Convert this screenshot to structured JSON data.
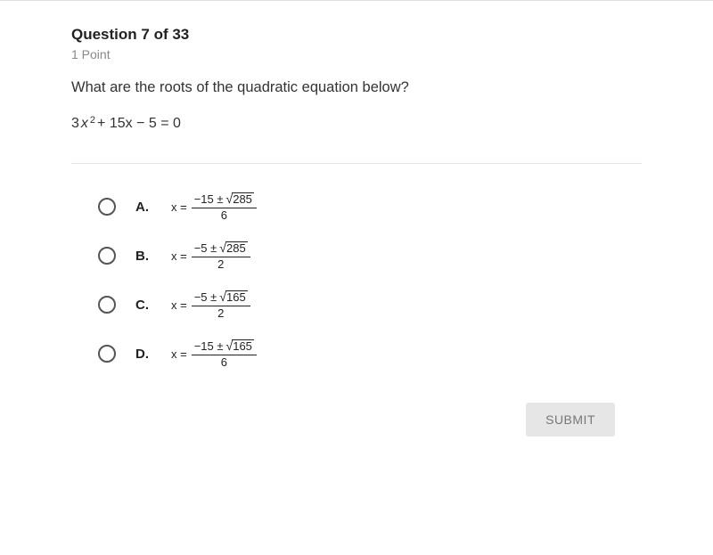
{
  "header": {
    "title": "Question 7 of 33",
    "points": "1 Point"
  },
  "question": {
    "text": "What are the roots of the quadratic equation below?",
    "equation": {
      "a": "3",
      "b": "15",
      "c": "5",
      "display_rest": " + 15x − 5 = 0"
    }
  },
  "options": [
    {
      "label": "A.",
      "numerator_lead": "−15 ±",
      "radicand": "285",
      "denominator": "6"
    },
    {
      "label": "B.",
      "numerator_lead": "−5 ±",
      "radicand": "285",
      "denominator": "2"
    },
    {
      "label": "C.",
      "numerator_lead": "−5 ±",
      "radicand": "165",
      "denominator": "2"
    },
    {
      "label": "D.",
      "numerator_lead": "−15 ±",
      "radicand": "165",
      "denominator": "6"
    }
  ],
  "buttons": {
    "submit": "SUBMIT"
  },
  "style": {
    "text_color": "#333333",
    "muted_color": "#888888",
    "divider_color": "#e6e6e6",
    "radio_border": "#555555",
    "submit_bg": "#e6e6e6",
    "submit_fg": "#777777"
  }
}
